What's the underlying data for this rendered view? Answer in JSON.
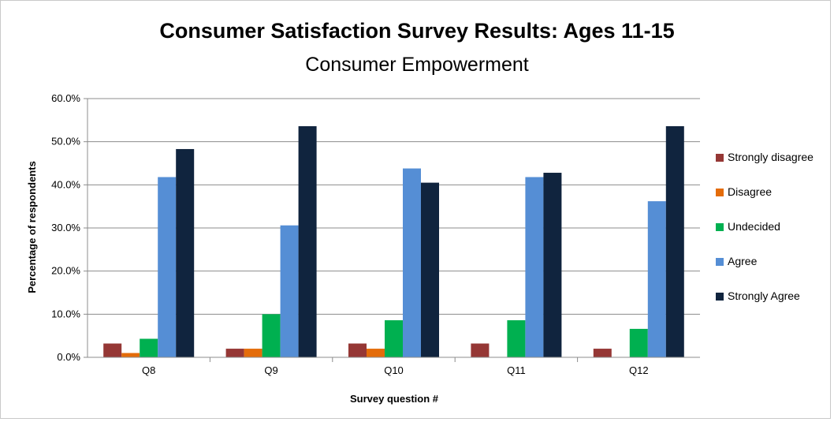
{
  "chart_data": {
    "type": "bar",
    "title": "Consumer Satisfaction Survey Results: Ages 11-15",
    "subtitle": "Consumer Empowerment",
    "xlabel": "Survey question #",
    "ylabel": "Percentage of respondents",
    "categories": [
      "Q8",
      "Q9",
      "Q10",
      "Q11",
      "Q12"
    ],
    "ylim": [
      0,
      60
    ],
    "yticks": [
      "0.0%",
      "10.0%",
      "20.0%",
      "30.0%",
      "40.0%",
      "50.0%",
      "60.0%"
    ],
    "grid": true,
    "legend_position": "right",
    "series": [
      {
        "name": "Strongly disagree",
        "color": "#953735",
        "values": [
          3.2,
          2.0,
          3.2,
          3.2,
          2.0
        ]
      },
      {
        "name": "Disagree",
        "color": "#e46c0a",
        "values": [
          1.0,
          2.0,
          2.0,
          0,
          0
        ]
      },
      {
        "name": "Undecided",
        "color": "#00b050",
        "values": [
          4.3,
          10.0,
          8.6,
          8.6,
          6.6
        ]
      },
      {
        "name": "Agree",
        "color": "#558ed5",
        "values": [
          41.8,
          30.6,
          43.8,
          41.8,
          36.2
        ]
      },
      {
        "name": "Strongly Agree",
        "color": "#10243e",
        "values": [
          48.3,
          53.6,
          40.5,
          42.8,
          53.6
        ]
      }
    ]
  }
}
